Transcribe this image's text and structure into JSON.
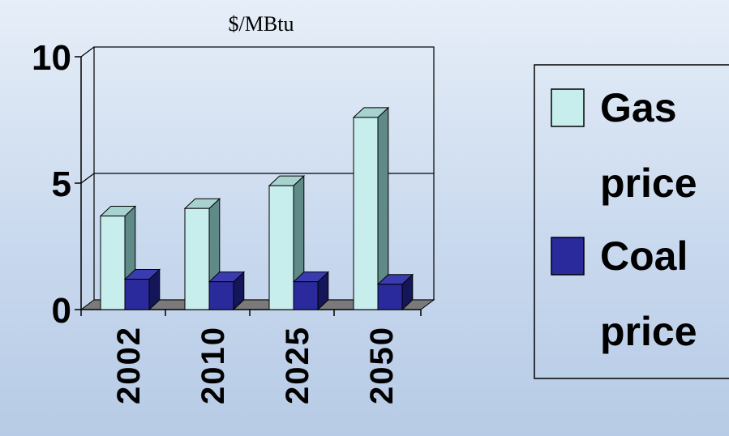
{
  "chart_data": {
    "type": "bar",
    "title": "$/MBtu",
    "xlabel": "",
    "ylabel": "",
    "categories": [
      "2002",
      "2010",
      "2025",
      "2050"
    ],
    "ylim": [
      0,
      10
    ],
    "yticks": [
      "0",
      "5",
      "10"
    ],
    "grid": true,
    "legend_position": "right",
    "series": [
      {
        "name_lines": [
          "Gas",
          "price"
        ],
        "values": [
          3.7,
          4.0,
          4.9,
          7.6
        ],
        "color": "#c8eded"
      },
      {
        "name_lines": [
          "Coal",
          "price"
        ],
        "values": [
          1.2,
          1.1,
          1.1,
          1.0
        ],
        "color": "#2a2a9c"
      }
    ]
  }
}
